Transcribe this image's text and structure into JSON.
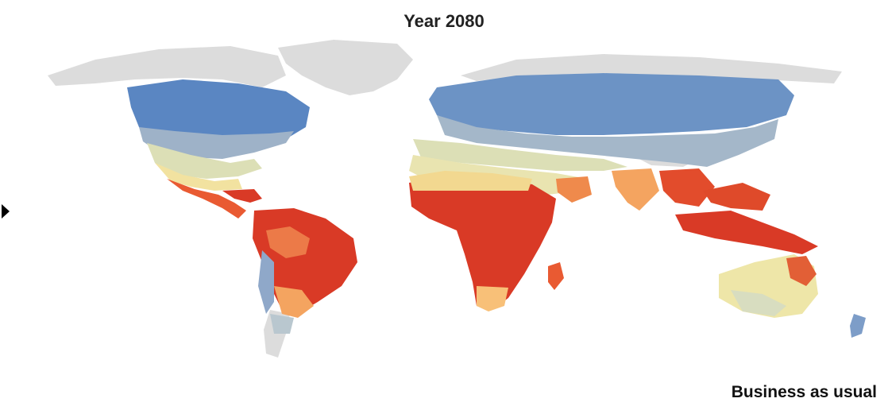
{
  "map": {
    "title": "Year 2080",
    "scenario_label": "Business as usual",
    "colors": {
      "no_data": "#dcdcdc",
      "scale": [
        "#4f7fc0",
        "#8fa8c9",
        "#b9c7cf",
        "#d8ddc0",
        "#eeeaa8",
        "#f8d288",
        "#f4a460",
        "#ec6c3c",
        "#d93a26"
      ]
    }
  },
  "controls": {
    "play_icon": "play-triangle-icon"
  }
}
